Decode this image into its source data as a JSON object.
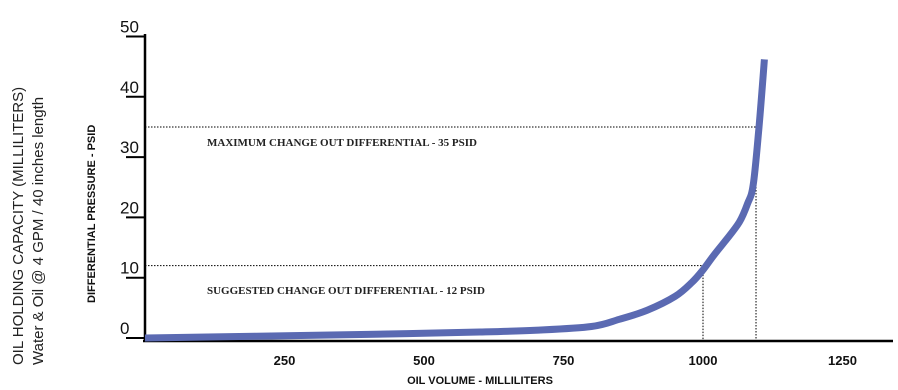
{
  "chart_data": {
    "type": "line",
    "side_title_1": "OIL HOLDING CAPACITY (MILLILITERS)",
    "side_title_2": "Water & Oil @ 4 GPM / 40 inches length",
    "ylabel": "DIFFERENTIAL PRESSURE - PSID",
    "xlabel": "OIL VOLUME - MILLILITERS",
    "xlim": [
      0,
      1350
    ],
    "ylim": [
      0,
      50
    ],
    "y_ticks": [
      0,
      10,
      20,
      30,
      40,
      50
    ],
    "x_ticks": [
      250,
      500,
      750,
      1000,
      1250
    ],
    "grid": false,
    "line_color": "#5b6ab2",
    "series": [
      {
        "x": [
          0,
          200,
          400,
          600,
          700,
          800,
          850,
          900,
          950,
          980,
          1000,
          1020,
          1040,
          1065,
          1080,
          1090,
          1100,
          1110
        ],
        "y": [
          0,
          0.3,
          0.6,
          1.0,
          1.3,
          1.9,
          3.1,
          4.6,
          6.9,
          9.2,
          11.3,
          13.8,
          16.1,
          19.2,
          22.3,
          25.4,
          34.6,
          46.2
        ]
      }
    ],
    "reference_lines": [
      {
        "label": "MAXIMUM CHANGE OUT DIFFERENTIAL - 35 PSID",
        "y": 35,
        "x_end": 1095
      },
      {
        "label": "SUGGESTED CHANGE OUT DIFFERENTIAL - 12 PSID",
        "y": 12,
        "x_end": 1000
      }
    ]
  }
}
